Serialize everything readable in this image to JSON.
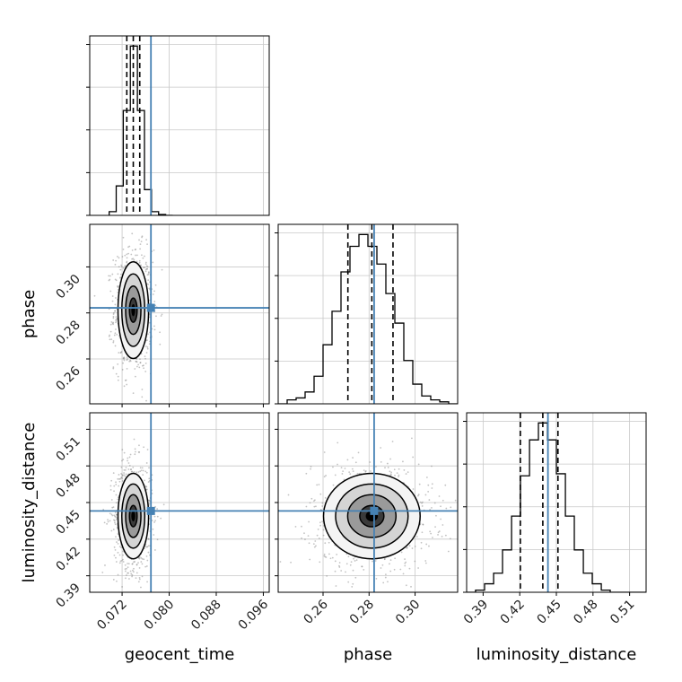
{
  "chart_data": {
    "type": "corner",
    "parameters": [
      "geocent_time",
      "phase",
      "luminosity_distance"
    ],
    "axis_labels": {
      "x": [
        "geocent_time",
        "phase",
        "luminosity_distance"
      ],
      "y": [
        "phase",
        "luminosity_distance"
      ]
    },
    "ranges": {
      "geocent_time": [
        0.0665,
        0.097
      ],
      "phase": [
        0.2405,
        0.3185
      ],
      "luminosity_distance": [
        0.3765,
        0.5235
      ]
    },
    "ticks": {
      "geocent_time": [
        0.072,
        0.08,
        0.088,
        0.096
      ],
      "phase": [
        0.26,
        0.28,
        0.3
      ],
      "luminosity_distance": [
        0.39,
        0.42,
        0.45,
        0.48,
        0.51
      ]
    },
    "tick_labels": {
      "geocent_time": [
        "0.072",
        "0.080",
        "0.088",
        "0.096"
      ],
      "phase": [
        "0.26",
        "0.28",
        "0.30"
      ],
      "luminosity_distance": [
        "0.39",
        "0.42",
        "0.45",
        "0.48",
        "0.51"
      ]
    },
    "truths": {
      "geocent_time": 0.0769,
      "phase": 0.2822,
      "luminosity_distance": 0.4431
    },
    "quantiles": {
      "geocent_time": [
        0.0728,
        0.0739,
        0.075
      ],
      "phase": [
        0.2708,
        0.2812,
        0.2904
      ],
      "luminosity_distance": [
        0.4205,
        0.4389,
        0.4513
      ]
    },
    "histograms": {
      "geocent_time": {
        "edges": [
          0.0698,
          0.071,
          0.0722,
          0.0734,
          0.0746,
          0.0758,
          0.077,
          0.0782,
          0.0794,
          0.0806
        ],
        "counts": [
          0.02,
          0.16,
          0.57,
          0.92,
          0.57,
          0.14,
          0.02,
          0.005,
          0.0
        ]
      },
      "phase": {
        "edges": [
          0.2405,
          0.2444,
          0.2483,
          0.2522,
          0.2561,
          0.26,
          0.2639,
          0.2678,
          0.2717,
          0.2756,
          0.2795,
          0.2834,
          0.2873,
          0.2912,
          0.2951,
          0.299,
          0.3029,
          0.3068,
          0.3107,
          0.3146,
          0.3185
        ],
        "counts": [
          0.0,
          0.02,
          0.03,
          0.06,
          0.14,
          0.3,
          0.47,
          0.67,
          0.8,
          0.86,
          0.8,
          0.71,
          0.56,
          0.41,
          0.22,
          0.1,
          0.04,
          0.02,
          0.01,
          0.0
        ]
      },
      "luminosity_distance": {
        "edges": [
          0.3765,
          0.3838,
          0.3912,
          0.3986,
          0.4059,
          0.4133,
          0.4206,
          0.428,
          0.4353,
          0.4427,
          0.45,
          0.4574,
          0.4647,
          0.4721,
          0.4794,
          0.4868,
          0.4941,
          0.5015,
          0.5088,
          0.5162,
          0.5235
        ],
        "counts": [
          0.0,
          0.01,
          0.04,
          0.09,
          0.2,
          0.36,
          0.55,
          0.72,
          0.8,
          0.72,
          0.56,
          0.36,
          0.2,
          0.09,
          0.04,
          0.01,
          0.0,
          0.0,
          0.0,
          0.0
        ]
      }
    },
    "density_2d": [
      {
        "x": "geocent_time",
        "y": "phase",
        "center": [
          0.0739,
          0.2812
        ],
        "sigma": [
          0.0013,
          0.0105
        ],
        "rho": 0.0
      },
      {
        "x": "geocent_time",
        "y": "luminosity_distance",
        "center": [
          0.0739,
          0.4389
        ],
        "sigma": [
          0.0013,
          0.0175
        ],
        "rho": 0.0
      },
      {
        "x": "phase",
        "y": "luminosity_distance",
        "center": [
          0.2812,
          0.4389
        ],
        "sigma": [
          0.0105,
          0.0175
        ],
        "rho": 0.0
      }
    ],
    "contour_levels": [
      "0.5-sigma",
      "1-sigma",
      "1.5-sigma",
      "2-sigma"
    ],
    "grid": true,
    "colors": {
      "truth": "#4682b4",
      "hist": "#000000",
      "points": "#7a7a7a",
      "grid": "#c8c8c8"
    }
  }
}
